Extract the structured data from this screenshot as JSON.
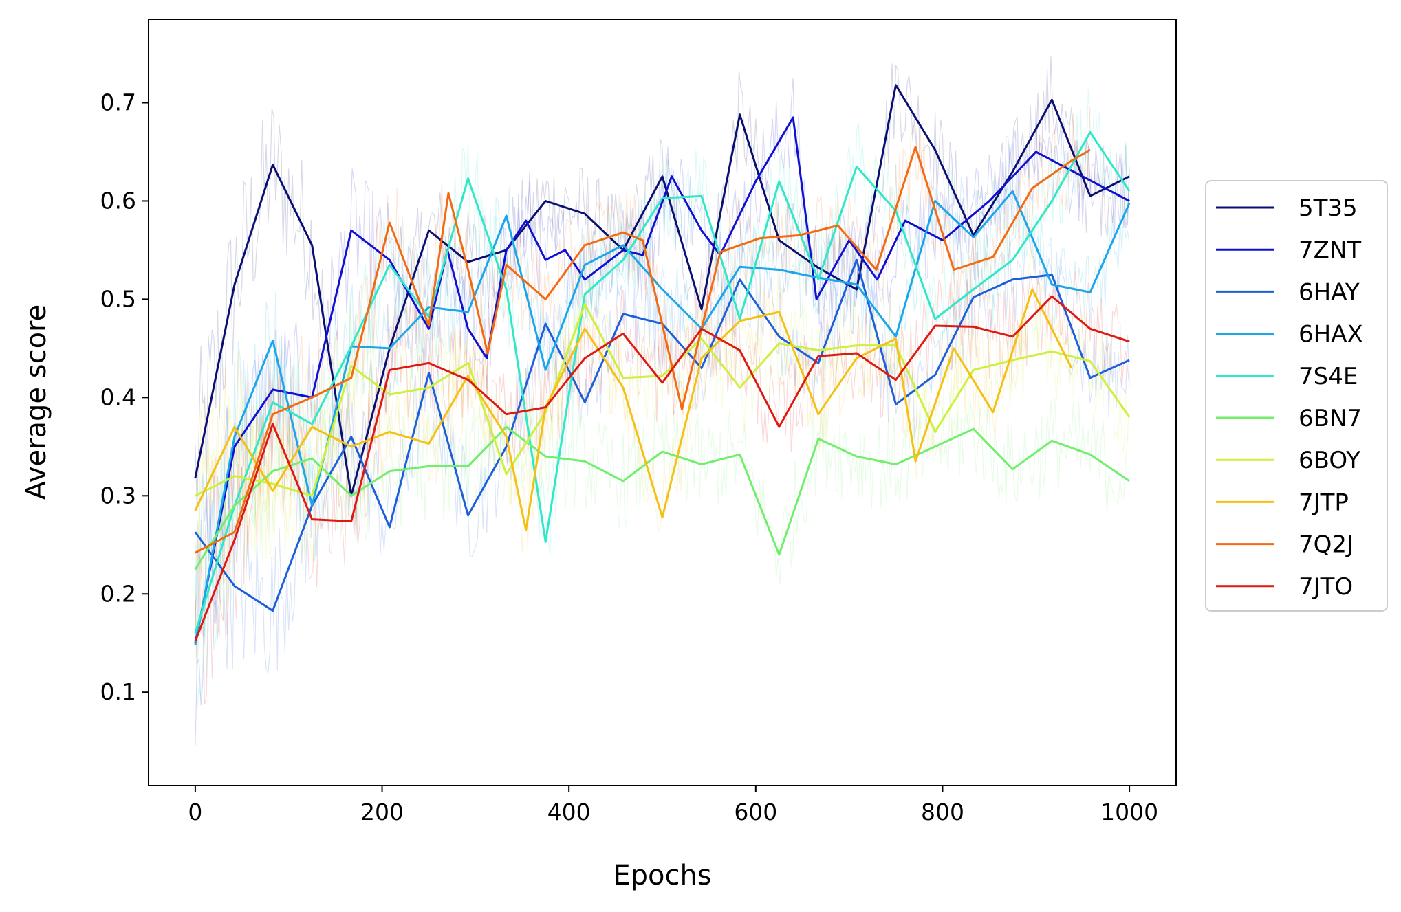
{
  "chart_data": {
    "type": "line",
    "title": "",
    "xlabel": "Epochs",
    "ylabel": "Average score",
    "xlim": [
      -50,
      1050
    ],
    "ylim": [
      0.005,
      0.785
    ],
    "xticks": [
      0,
      200,
      400,
      600,
      800,
      1000
    ],
    "yticks": [
      0.1,
      0.2,
      0.3,
      0.4,
      0.5,
      0.6,
      0.7
    ],
    "xtick_labels": [
      "0",
      "200",
      "400",
      "600",
      "800",
      "1000"
    ],
    "ytick_labels": [
      "0.1",
      "0.2",
      "0.3",
      "0.4",
      "0.5",
      "0.6",
      "0.7"
    ],
    "grid": false,
    "legend_position": "right",
    "note_background": "Each series is drawn over a faint, noisy per-epoch trace in the same color",
    "series": [
      {
        "name": "5T35",
        "color": "#0a1070",
        "x": [
          0,
          42,
          83,
          125,
          167,
          208,
          250,
          292,
          333,
          375,
          417,
          458,
          500,
          542,
          583,
          625,
          667,
          708,
          750,
          792,
          833,
          875,
          917,
          958,
          1000
        ],
        "y": [
          0.318,
          0.515,
          0.637,
          0.555,
          0.3,
          0.45,
          0.57,
          0.538,
          0.55,
          0.6,
          0.587,
          0.55,
          0.625,
          0.49,
          0.688,
          0.56,
          0.532,
          0.51,
          0.718,
          0.652,
          0.565,
          0.63,
          0.703,
          0.605,
          0.625
        ]
      },
      {
        "name": "7ZNT",
        "color": "#1010d0",
        "x": [
          0,
          42,
          83,
          125,
          167,
          208,
          250,
          270,
          292,
          312,
          333,
          354,
          375,
          396,
          417,
          458,
          479,
          510,
          542,
          562,
          600,
          640,
          665,
          700,
          730,
          760,
          800,
          850,
          900,
          960,
          1000
        ],
        "y": [
          0.15,
          0.35,
          0.408,
          0.4,
          0.57,
          0.54,
          0.47,
          0.55,
          0.47,
          0.44,
          0.55,
          0.58,
          0.54,
          0.55,
          0.52,
          0.55,
          0.545,
          0.625,
          0.57,
          0.545,
          0.62,
          0.685,
          0.5,
          0.56,
          0.52,
          0.58,
          0.56,
          0.6,
          0.65,
          0.62,
          0.6
        ]
      },
      {
        "name": "6HAY",
        "color": "#1d5fd8",
        "x": [
          0,
          42,
          83,
          125,
          167,
          208,
          250,
          292,
          333,
          375,
          417,
          458,
          500,
          542,
          583,
          625,
          667,
          708,
          750,
          792,
          833,
          875,
          917,
          958,
          1000
        ],
        "y": [
          0.263,
          0.208,
          0.183,
          0.29,
          0.36,
          0.268,
          0.425,
          0.28,
          0.35,
          0.475,
          0.395,
          0.485,
          0.475,
          0.43,
          0.52,
          0.462,
          0.435,
          0.54,
          0.393,
          0.423,
          0.502,
          0.52,
          0.525,
          0.42,
          0.438
        ]
      },
      {
        "name": "6HAX",
        "color": "#1aa6e8",
        "x": [
          0,
          42,
          83,
          125,
          167,
          208,
          250,
          292,
          333,
          375,
          417,
          458,
          500,
          542,
          583,
          625,
          667,
          708,
          750,
          792,
          833,
          875,
          917,
          958,
          1000
        ],
        "y": [
          0.148,
          0.36,
          0.458,
          0.29,
          0.452,
          0.45,
          0.492,
          0.487,
          0.585,
          0.428,
          0.535,
          0.555,
          0.51,
          0.47,
          0.533,
          0.53,
          0.522,
          0.515,
          0.462,
          0.6,
          0.563,
          0.61,
          0.515,
          0.507,
          0.598
        ]
      },
      {
        "name": "7S4E",
        "color": "#2ee8c8",
        "x": [
          0,
          42,
          83,
          125,
          167,
          208,
          250,
          292,
          333,
          375,
          417,
          458,
          500,
          542,
          583,
          625,
          667,
          708,
          750,
          792,
          833,
          875,
          917,
          958,
          1000
        ],
        "y": [
          0.16,
          0.29,
          0.395,
          0.373,
          0.452,
          0.535,
          0.482,
          0.623,
          0.51,
          0.253,
          0.505,
          0.54,
          0.603,
          0.605,
          0.48,
          0.62,
          0.52,
          0.635,
          0.59,
          0.48,
          0.51,
          0.54,
          0.6,
          0.67,
          0.61
        ]
      },
      {
        "name": "6BN7",
        "color": "#72ee6e",
        "x": [
          0,
          42,
          83,
          125,
          167,
          208,
          250,
          292,
          333,
          375,
          417,
          458,
          500,
          542,
          583,
          625,
          667,
          708,
          750,
          792,
          833,
          875,
          917,
          958,
          1000
        ],
        "y": [
          0.225,
          0.29,
          0.325,
          0.338,
          0.3,
          0.325,
          0.33,
          0.33,
          0.37,
          0.34,
          0.335,
          0.315,
          0.345,
          0.332,
          0.342,
          0.24,
          0.358,
          0.34,
          0.332,
          0.35,
          0.368,
          0.327,
          0.356,
          0.342,
          0.315
        ]
      },
      {
        "name": "6BOY",
        "color": "#cdf03e",
        "x": [
          0,
          42,
          83,
          125,
          167,
          208,
          250,
          292,
          333,
          375,
          417,
          458,
          500,
          542,
          583,
          625,
          667,
          708,
          750,
          792,
          833,
          875,
          917,
          958,
          1000
        ],
        "y": [
          0.3,
          0.32,
          0.312,
          0.3,
          0.432,
          0.403,
          0.41,
          0.435,
          0.322,
          0.385,
          0.495,
          0.42,
          0.422,
          0.46,
          0.41,
          0.455,
          0.448,
          0.453,
          0.453,
          0.365,
          0.428,
          0.438,
          0.447,
          0.437,
          0.38
        ]
      },
      {
        "name": "7JTP",
        "color": "#f4c014",
        "x": [
          0,
          42,
          83,
          125,
          167,
          208,
          250,
          292,
          333,
          354,
          375,
          417,
          458,
          500,
          542,
          583,
          625,
          667,
          708,
          750,
          771,
          812,
          854,
          896,
          938
        ],
        "y": [
          0.285,
          0.37,
          0.305,
          0.37,
          0.35,
          0.365,
          0.353,
          0.422,
          0.36,
          0.265,
          0.39,
          0.47,
          0.41,
          0.278,
          0.44,
          0.478,
          0.487,
          0.383,
          0.44,
          0.46,
          0.335,
          0.45,
          0.385,
          0.51,
          0.43
        ]
      },
      {
        "name": "7Q2J",
        "color": "#f26a12",
        "x": [
          0,
          42,
          83,
          125,
          167,
          208,
          250,
          271,
          292,
          313,
          333,
          375,
          417,
          458,
          479,
          521,
          562,
          604,
          646,
          688,
          729,
          771,
          812,
          854,
          896,
          938,
          958
        ],
        "y": [
          0.242,
          0.263,
          0.383,
          0.4,
          0.42,
          0.578,
          0.473,
          0.608,
          0.53,
          0.445,
          0.535,
          0.5,
          0.555,
          0.568,
          0.56,
          0.388,
          0.548,
          0.562,
          0.565,
          0.575,
          0.53,
          0.655,
          0.53,
          0.543,
          0.613,
          0.641,
          0.652
        ]
      },
      {
        "name": "7JTO",
        "color": "#dd1a12",
        "x": [
          0,
          42,
          83,
          125,
          167,
          208,
          250,
          292,
          333,
          375,
          417,
          458,
          500,
          542,
          583,
          625,
          667,
          708,
          750,
          792,
          833,
          875,
          917,
          958,
          1000
        ],
        "y": [
          0.152,
          0.255,
          0.373,
          0.276,
          0.274,
          0.428,
          0.435,
          0.418,
          0.383,
          0.39,
          0.44,
          0.465,
          0.415,
          0.47,
          0.448,
          0.37,
          0.442,
          0.445,
          0.418,
          0.473,
          0.472,
          0.462,
          0.503,
          0.47,
          0.457
        ]
      }
    ]
  }
}
